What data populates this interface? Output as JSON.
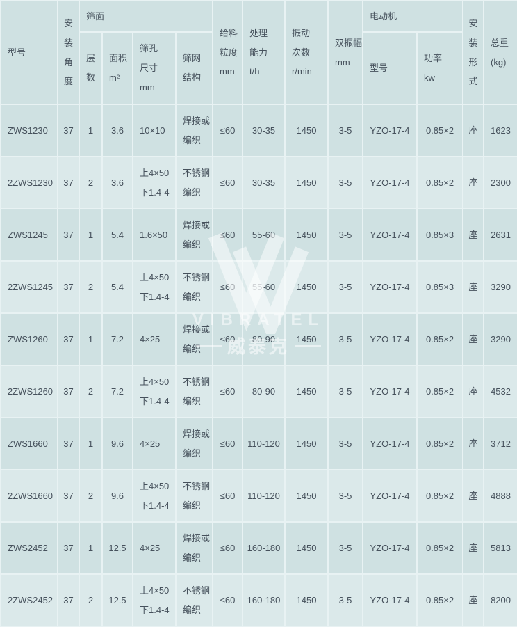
{
  "watermark": {
    "brand": "VIBRATEL",
    "brand_cn": "威泰克"
  },
  "table": {
    "header": {
      "model": "型号",
      "install_angle": "安\n装\n角\n度",
      "screen_surface": "筛面",
      "layers": "层\n数",
      "area": "面积\nm²",
      "mesh_size": "筛孔\n尺寸\nmm",
      "mesh_structure": "筛网\n结构",
      "feed_size": "给料\n粒度\nmm",
      "capacity": "处理\n能力\nt/h",
      "vibration_freq": "振动\n次数\nr/min",
      "double_amplitude": "双振幅\nmm",
      "motor": "电动机",
      "motor_model": "型号",
      "motor_power": "功率\nkw",
      "install_form": "安\n装\n形\n式",
      "total_weight": "总重\n(kg)"
    },
    "rows": [
      [
        "ZWS1230",
        "37",
        "1",
        "3.6",
        "10×10",
        "焊接或\n编织",
        "≤60",
        "30-35",
        "1450",
        "3-5",
        "YZO-17-4",
        "0.85×2",
        "座",
        "1623"
      ],
      [
        "2ZWS1230",
        "37",
        "2",
        "3.6",
        "上4×50\n下1.4-4",
        "不锈钢\n编织",
        "≤60",
        "30-35",
        "1450",
        "3-5",
        "YZO-17-4",
        "0.85×2",
        "座",
        "2300"
      ],
      [
        "ZWS1245",
        "37",
        "1",
        "5.4",
        "1.6×50",
        "焊接或\n编织",
        "≤60",
        "55-60",
        "1450",
        "3-5",
        "YZO-17-4",
        "0.85×3",
        "座",
        "2631"
      ],
      [
        "2ZWS1245",
        "37",
        "2",
        "5.4",
        "上4×50\n下1.4-4",
        "不锈钢\n编织",
        "≤60",
        "55-60",
        "1450",
        "3-5",
        "YZO-17-4",
        "0.85×3",
        "座",
        "3290"
      ],
      [
        "ZWS1260",
        "37",
        "1",
        "7.2",
        "4×25",
        "焊接或\n编织",
        "≤60",
        "80-90",
        "1450",
        "3-5",
        "YZO-17-4",
        "0.85×2",
        "座",
        "3290"
      ],
      [
        "2ZWS1260",
        "37",
        "2",
        "7.2",
        "上4×50\n下1.4-4",
        "不锈钢\n编织",
        "≤60",
        "80-90",
        "1450",
        "3-5",
        "YZO-17-4",
        "0.85×2",
        "座",
        "4532"
      ],
      [
        "ZWS1660",
        "37",
        "1",
        "9.6",
        "4×25",
        "焊接或\n编织",
        "≤60",
        "110-120",
        "1450",
        "3-5",
        "YZO-17-4",
        "0.85×2",
        "座",
        "3712"
      ],
      [
        "2ZWS1660",
        "37",
        "2",
        "9.6",
        "上4×50\n下1.4-4",
        "不锈钢\n编织",
        "≤60",
        "110-120",
        "1450",
        "3-5",
        "YZO-17-4",
        "0.85×2",
        "座",
        "4888"
      ],
      [
        "ZWS2452",
        "37",
        "1",
        "12.5",
        "4×25",
        "焊接或\n编织",
        "≤60",
        "160-180",
        "1450",
        "3-5",
        "YZO-17-4",
        "0.85×2",
        "座",
        "5813"
      ],
      [
        "2ZWS2452",
        "37",
        "2",
        "12.5",
        "上4×50\n下1.4-4",
        "不锈钢\n编织",
        "≤60",
        "160-180",
        "1450",
        "3-5",
        "YZO-17-4",
        "0.85×2",
        "座",
        "8200"
      ]
    ]
  },
  "colors": {
    "row_odd": "#cfe1e2",
    "row_even": "#dbe9ea",
    "grid_line": "#e8f2f3",
    "top_border": "#8fb6bb",
    "text": "#46515c",
    "watermark": "rgba(255,255,255,0.55)"
  },
  "chart_data": {
    "type": "table",
    "columns": [
      "型号",
      "安装角度",
      "层数",
      "面积 m²",
      "筛孔尺寸 mm",
      "筛网结构",
      "给料粒度 mm",
      "处理能力 t/h",
      "振动次数 r/min",
      "双振幅 mm",
      "电动机型号",
      "功率 kw",
      "安装形式",
      "总重 (kg)"
    ],
    "rows": [
      [
        "ZWS1230",
        "37",
        "1",
        "3.6",
        "10×10",
        "焊接或编织",
        "≤60",
        "30-35",
        "1450",
        "3-5",
        "YZO-17-4",
        "0.85×2",
        "座",
        "1623"
      ],
      [
        "2ZWS1230",
        "37",
        "2",
        "3.6",
        "上4×50 下1.4-4",
        "不锈钢编织",
        "≤60",
        "30-35",
        "1450",
        "3-5",
        "YZO-17-4",
        "0.85×2",
        "座",
        "2300"
      ],
      [
        "ZWS1245",
        "37",
        "1",
        "5.4",
        "1.6×50",
        "焊接或编织",
        "≤60",
        "55-60",
        "1450",
        "3-5",
        "YZO-17-4",
        "0.85×3",
        "座",
        "2631"
      ],
      [
        "2ZWS1245",
        "37",
        "2",
        "5.4",
        "上4×50 下1.4-4",
        "不锈钢编织",
        "≤60",
        "55-60",
        "1450",
        "3-5",
        "YZO-17-4",
        "0.85×3",
        "座",
        "3290"
      ],
      [
        "ZWS1260",
        "37",
        "1",
        "7.2",
        "4×25",
        "焊接或编织",
        "≤60",
        "80-90",
        "1450",
        "3-5",
        "YZO-17-4",
        "0.85×2",
        "座",
        "3290"
      ],
      [
        "2ZWS1260",
        "37",
        "2",
        "7.2",
        "上4×50 下1.4-4",
        "不锈钢编织",
        "≤60",
        "80-90",
        "1450",
        "3-5",
        "YZO-17-4",
        "0.85×2",
        "座",
        "4532"
      ],
      [
        "ZWS1660",
        "37",
        "1",
        "9.6",
        "4×25",
        "焊接或编织",
        "≤60",
        "110-120",
        "1450",
        "3-5",
        "YZO-17-4",
        "0.85×2",
        "座",
        "3712"
      ],
      [
        "2ZWS1660",
        "37",
        "2",
        "9.6",
        "上4×50 下1.4-4",
        "不锈钢编织",
        "≤60",
        "110-120",
        "1450",
        "3-5",
        "YZO-17-4",
        "0.85×2",
        "座",
        "4888"
      ],
      [
        "ZWS2452",
        "37",
        "1",
        "12.5",
        "4×25",
        "焊接或编织",
        "≤60",
        "160-180",
        "1450",
        "3-5",
        "YZO-17-4",
        "0.85×2",
        "座",
        "5813"
      ],
      [
        "2ZWS2452",
        "37",
        "2",
        "12.5",
        "上4×50 下1.4-4",
        "不锈钢编织",
        "≤60",
        "160-180",
        "1450",
        "3-5",
        "YZO-17-4",
        "0.85×2",
        "座",
        "8200"
      ]
    ]
  }
}
